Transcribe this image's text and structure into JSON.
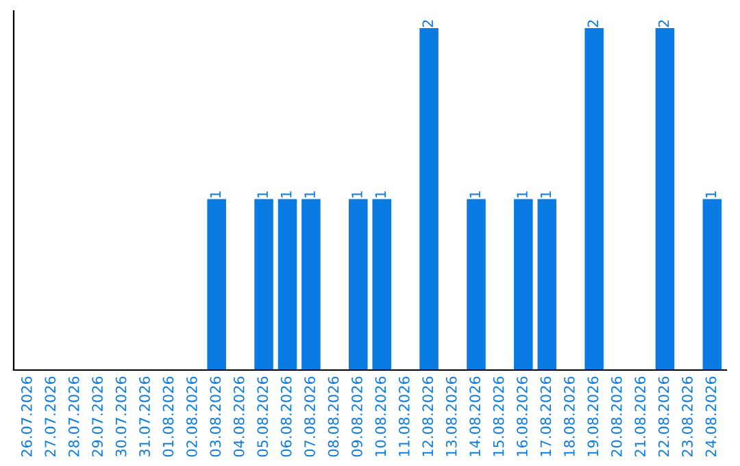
{
  "chart_data": {
    "type": "bar",
    "categories": [
      "26.07.2026",
      "27.07.2026",
      "28.07.2026",
      "29.07.2026",
      "30.07.2026",
      "31.07.2026",
      "01.08.2026",
      "02.08.2026",
      "03.08.2026",
      "04.08.2026",
      "05.08.2026",
      "06.08.2026",
      "07.08.2026",
      "08.08.2026",
      "09.08.2026",
      "10.08.2026",
      "11.08.2026",
      "12.08.2026",
      "13.08.2026",
      "14.08.2026",
      "15.08.2026",
      "16.08.2026",
      "17.08.2026",
      "18.08.2026",
      "19.08.2026",
      "20.08.2026",
      "21.08.2026",
      "22.08.2026",
      "23.08.2026",
      "24.08.2026"
    ],
    "values": [
      0,
      0,
      0,
      0,
      0,
      0,
      0,
      0,
      1,
      0,
      1,
      1,
      1,
      0,
      1,
      1,
      0,
      2,
      0,
      1,
      0,
      1,
      1,
      0,
      2,
      0,
      0,
      2,
      0,
      1
    ],
    "value_labels": [
      null,
      null,
      null,
      null,
      null,
      null,
      null,
      null,
      "1",
      null,
      "1",
      "1",
      "1",
      null,
      "1",
      "1",
      null,
      "2",
      null,
      "1",
      null,
      "1",
      "1",
      null,
      "2",
      null,
      null,
      "2",
      null,
      "1"
    ],
    "color": "#0a7be3",
    "ylim": [
      0,
      2.1
    ],
    "tick_labels": "x",
    "grid": false,
    "legend": false
  }
}
